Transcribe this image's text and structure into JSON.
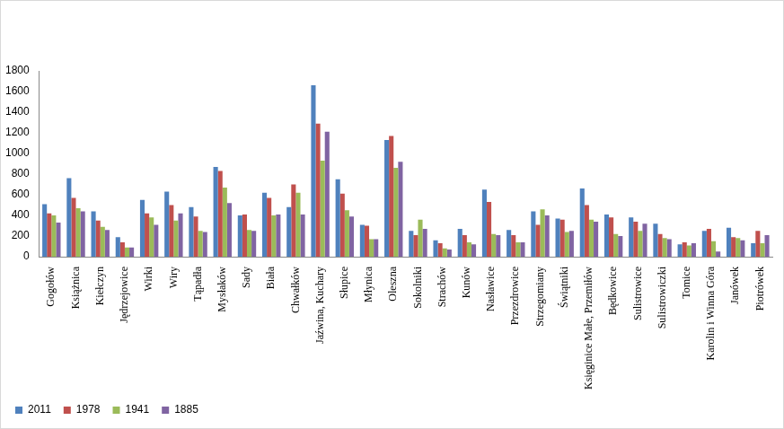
{
  "chart_data": {
    "type": "bar",
    "categories": [
      "Gogołów",
      "Książnica",
      "Kiełczyn",
      "Jędrzejowice",
      "Wirki",
      "Wiry",
      "Tąpadła",
      "Mysłaków",
      "Sady",
      "Biała",
      "Chwałków",
      "Jaźwina, Kuchary",
      "Słupice",
      "Młynica",
      "Oleszna",
      "Sokolniki",
      "Strachów",
      "Kunów",
      "Nasławice",
      "Przezdrowice",
      "Strzegomiany",
      "Świątniki",
      "Księginice Małe, Przemiłów",
      "Będkowice",
      "Sulistrowice",
      "Sulistrowiczki",
      "Tomice",
      "Karolin i Winna Góra",
      "Janówek",
      "Piotrówek"
    ],
    "series": [
      {
        "name": "2011",
        "color": "#4f81bd",
        "values": [
          510,
          760,
          440,
          190,
          550,
          630,
          480,
          870,
          400,
          620,
          480,
          1660,
          750,
          310,
          1130,
          250,
          160,
          270,
          650,
          260,
          440,
          370,
          660,
          410,
          380,
          320,
          120,
          250,
          280,
          130
        ]
      },
      {
        "name": "1978",
        "color": "#c0504d",
        "values": [
          420,
          570,
          350,
          140,
          420,
          500,
          390,
          830,
          410,
          570,
          700,
          1290,
          610,
          300,
          1170,
          210,
          130,
          210,
          530,
          210,
          310,
          360,
          500,
          380,
          340,
          220,
          140,
          270,
          190,
          250
        ]
      },
      {
        "name": "1941",
        "color": "#9bbb59",
        "values": [
          400,
          470,
          290,
          90,
          380,
          350,
          250,
          670,
          260,
          400,
          620,
          930,
          450,
          170,
          860,
          360,
          80,
          140,
          220,
          140,
          460,
          240,
          360,
          220,
          250,
          180,
          110,
          150,
          180,
          130
        ]
      },
      {
        "name": "1885",
        "color": "#8064a2",
        "values": [
          330,
          440,
          260,
          90,
          310,
          420,
          240,
          520,
          250,
          410,
          410,
          1210,
          390,
          170,
          920,
          270,
          70,
          120,
          210,
          140,
          400,
          250,
          340,
          200,
          320,
          170,
          130,
          50,
          160,
          210
        ]
      }
    ],
    "ylim": [
      0,
      1800
    ],
    "yticks": [
      0,
      200,
      400,
      600,
      800,
      1000,
      1200,
      1400,
      1600,
      1800
    ],
    "grid": false,
    "legend": "bottom-left"
  }
}
